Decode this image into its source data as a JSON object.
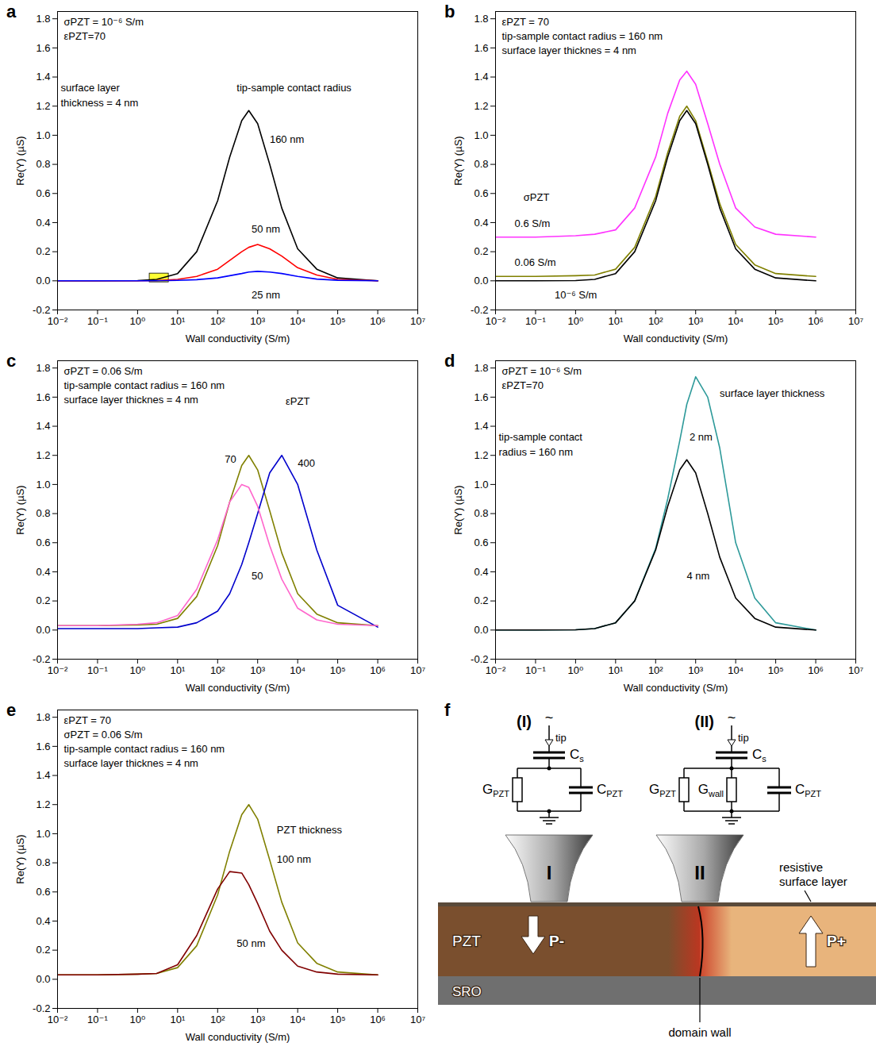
{
  "chart_data": [
    {
      "label": "a",
      "type": "line",
      "log": "x",
      "x_label": "Wall conductivity (S/m)",
      "y_label": "Re(Y) (µS)",
      "xlim": [
        0.01,
        10000000
      ],
      "ylim": [
        -0.2,
        1.85
      ],
      "xticks": [
        {
          "value": 0.01,
          "label": "10⁻²"
        },
        {
          "value": 0.1,
          "label": "10⁻¹"
        },
        {
          "value": 1,
          "label": "10⁰"
        },
        {
          "value": 10,
          "label": "10¹"
        },
        {
          "value": 100,
          "label": "10²"
        },
        {
          "value": 1000,
          "label": "10³"
        },
        {
          "value": 10000,
          "label": "10⁴"
        },
        {
          "value": 100000,
          "label": "10⁵"
        },
        {
          "value": 1000000,
          "label": "10⁶"
        },
        {
          "value": 10000000,
          "label": "10⁷"
        }
      ],
      "yticks": [
        -0.2,
        {
          "value": 0,
          "label": "0.0"
        },
        0.2,
        0.4,
        0.6,
        0.8,
        {
          "value": 1,
          "label": "1.0"
        },
        1.2,
        1.4,
        1.6,
        1.8
      ],
      "notes": [
        "σPZT = 10⁻⁶ S/m",
        "εPZT=70"
      ],
      "annotations": [
        {
          "text": "surface layer",
          "x": 0.012,
          "y": 1.3
        },
        {
          "text": "thickness = 4 nm",
          "x": 0.012,
          "y": 1.2
        },
        {
          "text": "tip-sample contact radius",
          "x": 300,
          "y": 1.3
        }
      ],
      "highlight": {
        "x": [
          2,
          6
        ],
        "y": [
          -0.01,
          0.05
        ],
        "color": "#ffff33"
      },
      "x": [
        0.01,
        0.1,
        1,
        3,
        10,
        30,
        100,
        200,
        400,
        600,
        1000,
        2000,
        4000,
        10000,
        30000,
        100000,
        1000000
      ],
      "series": [
        {
          "name": "160 nm",
          "color": "#000000",
          "label_x": 2000,
          "label_y": 0.95,
          "values": [
            0,
            0,
            0.002,
            0.01,
            0.05,
            0.2,
            0.55,
            0.85,
            1.1,
            1.17,
            1.08,
            0.8,
            0.5,
            0.22,
            0.08,
            0.02,
            0
          ]
        },
        {
          "name": "50 nm",
          "color": "#ff0000",
          "label_x": 700,
          "label_y": 0.33,
          "values": [
            0,
            0,
            0,
            0.002,
            0.01,
            0.03,
            0.08,
            0.14,
            0.2,
            0.23,
            0.25,
            0.22,
            0.17,
            0.09,
            0.04,
            0.01,
            0
          ]
        },
        {
          "name": "25 nm",
          "color": "#0000ff",
          "label_x": 700,
          "label_y": -0.12,
          "values": [
            0,
            0,
            0,
            0,
            0.003,
            0.008,
            0.02,
            0.035,
            0.05,
            0.06,
            0.065,
            0.06,
            0.05,
            0.03,
            0.012,
            0.004,
            0
          ]
        }
      ]
    },
    {
      "label": "b",
      "type": "line",
      "log": "x",
      "x_label": "Wall conductivity (S/m)",
      "y_label": "Re(Y) (µS)",
      "xlim": [
        0.01,
        10000000
      ],
      "ylim": [
        -0.2,
        1.85
      ],
      "xticks": [
        {
          "value": 0.01,
          "label": "10⁻²"
        },
        {
          "value": 0.1,
          "label": "10⁻¹"
        },
        {
          "value": 1,
          "label": "10⁰"
        },
        {
          "value": 10,
          "label": "10¹"
        },
        {
          "value": 100,
          "label": "10²"
        },
        {
          "value": 1000,
          "label": "10³"
        },
        {
          "value": 10000,
          "label": "10⁴"
        },
        {
          "value": 100000,
          "label": "10⁵"
        },
        {
          "value": 1000000,
          "label": "10⁶"
        },
        {
          "value": 10000000,
          "label": "10⁷"
        }
      ],
      "yticks": [
        -0.2,
        {
          "value": 0,
          "label": "0.0"
        },
        0.2,
        0.4,
        0.6,
        0.8,
        {
          "value": 1,
          "label": "1.0"
        },
        1.2,
        1.4,
        1.6,
        1.8
      ],
      "notes": [
        "εPZT = 70",
        "tip-sample contact radius = 160 nm",
        "surface layer thicknes = 4 nm"
      ],
      "annotations": [
        {
          "text": "σPZT",
          "x": 0.05,
          "y": 0.55
        }
      ],
      "x": [
        0.01,
        0.1,
        1,
        3,
        10,
        30,
        100,
        200,
        400,
        600,
        1000,
        2000,
        4000,
        10000,
        30000,
        100000,
        1000000
      ],
      "series": [
        {
          "name": "0.6 S/m",
          "color": "#ff33ff",
          "label_x": 0.03,
          "label_y": 0.37,
          "values": [
            0.3,
            0.3,
            0.31,
            0.32,
            0.35,
            0.5,
            0.85,
            1.15,
            1.38,
            1.44,
            1.35,
            1.08,
            0.8,
            0.5,
            0.37,
            0.32,
            0.3
          ]
        },
        {
          "name": "0.06 S/m",
          "color": "#808000",
          "label_x": 0.03,
          "label_y": 0.1,
          "values": [
            0.03,
            0.03,
            0.035,
            0.04,
            0.08,
            0.23,
            0.58,
            0.88,
            1.13,
            1.2,
            1.1,
            0.82,
            0.53,
            0.25,
            0.11,
            0.05,
            0.03
          ]
        },
        {
          "name": "10⁻⁶ S/m",
          "color": "#000000",
          "label_x": 0.3,
          "label_y": -0.12,
          "values": [
            0,
            0,
            0.002,
            0.01,
            0.05,
            0.2,
            0.55,
            0.85,
            1.1,
            1.17,
            1.08,
            0.8,
            0.5,
            0.22,
            0.08,
            0.02,
            0
          ]
        }
      ]
    },
    {
      "label": "c",
      "type": "line",
      "log": "x",
      "x_label": "Wall conductivity (S/m)",
      "y_label": "Re(Y) (µS)",
      "xlim": [
        0.01,
        10000000
      ],
      "ylim": [
        -0.2,
        1.85
      ],
      "xticks": [
        {
          "value": 0.01,
          "label": "10⁻²"
        },
        {
          "value": 0.1,
          "label": "10⁻¹"
        },
        {
          "value": 1,
          "label": "10⁰"
        },
        {
          "value": 10,
          "label": "10¹"
        },
        {
          "value": 100,
          "label": "10²"
        },
        {
          "value": 1000,
          "label": "10³"
        },
        {
          "value": 10000,
          "label": "10⁴"
        },
        {
          "value": 100000,
          "label": "10⁵"
        },
        {
          "value": 1000000,
          "label": "10⁶"
        },
        {
          "value": 10000000,
          "label": "10⁷"
        }
      ],
      "yticks": [
        -0.2,
        {
          "value": 0,
          "label": "0.0"
        },
        0.2,
        0.4,
        0.6,
        0.8,
        {
          "value": 1,
          "label": "1.0"
        },
        1.2,
        1.4,
        1.6,
        1.8
      ],
      "notes": [
        "σPZT = 0.06 S/m",
        "tip-sample contact radius = 160 nm",
        "surface layer thicknes = 4 nm"
      ],
      "annotations": [
        {
          "text": "εPZT",
          "x": 5000,
          "y": 1.55
        }
      ],
      "x": [
        0.01,
        0.1,
        1,
        3,
        10,
        30,
        100,
        200,
        400,
        600,
        1000,
        2000,
        4000,
        10000,
        30000,
        100000,
        1000000
      ],
      "series": [
        {
          "name": "70",
          "color": "#808000",
          "label_x": 150,
          "label_y": 1.15,
          "values": [
            0.03,
            0.03,
            0.035,
            0.04,
            0.08,
            0.23,
            0.58,
            0.88,
            1.13,
            1.2,
            1.1,
            0.82,
            0.53,
            0.25,
            0.11,
            0.05,
            0.03
          ]
        },
        {
          "name": "400",
          "color": "#0000cc",
          "label_x": 10000,
          "label_y": 1.12,
          "values": [
            0.01,
            0.01,
            0.01,
            0.015,
            0.02,
            0.05,
            0.13,
            0.25,
            0.45,
            0.6,
            0.8,
            1.08,
            1.2,
            1.0,
            0.55,
            0.17,
            0.02
          ]
        },
        {
          "name": "50",
          "color": "#ff66cc",
          "label_x": 700,
          "label_y": 0.35,
          "values": [
            0.03,
            0.03,
            0.04,
            0.05,
            0.1,
            0.28,
            0.62,
            0.88,
            1.0,
            0.98,
            0.85,
            0.58,
            0.35,
            0.15,
            0.07,
            0.04,
            0.03
          ]
        }
      ]
    },
    {
      "label": "d",
      "type": "line",
      "log": "x",
      "x_label": "Wall conductivity (S/m)",
      "y_label": "Re(Y) (µS)",
      "xlim": [
        0.01,
        10000000
      ],
      "ylim": [
        -0.2,
        1.85
      ],
      "xticks": [
        {
          "value": 0.01,
          "label": "10⁻²"
        },
        {
          "value": 0.1,
          "label": "10⁻¹"
        },
        {
          "value": 1,
          "label": "10⁰"
        },
        {
          "value": 10,
          "label": "10¹"
        },
        {
          "value": 100,
          "label": "10²"
        },
        {
          "value": 1000,
          "label": "10³"
        },
        {
          "value": 10000,
          "label": "10⁴"
        },
        {
          "value": 100000,
          "label": "10⁵"
        },
        {
          "value": 1000000,
          "label": "10⁶"
        },
        {
          "value": 10000000,
          "label": "10⁷"
        }
      ],
      "yticks": [
        -0.2,
        {
          "value": 0,
          "label": "0.0"
        },
        0.2,
        0.4,
        0.6,
        0.8,
        {
          "value": 1,
          "label": "1.0"
        },
        1.2,
        1.4,
        1.6,
        1.8
      ],
      "notes": [
        "σPZT = 10⁻⁶ S/m",
        "εPZT=70"
      ],
      "annotations": [
        {
          "text": "tip-sample contact",
          "x": 0.012,
          "y": 1.3
        },
        {
          "text": "radius = 160 nm",
          "x": 0.012,
          "y": 1.2
        },
        {
          "text": "surface layer thickness",
          "x": 4000,
          "y": 1.6
        }
      ],
      "x": [
        0.01,
        0.1,
        1,
        3,
        10,
        30,
        100,
        200,
        400,
        600,
        1000,
        2000,
        4000,
        10000,
        30000,
        100000,
        1000000
      ],
      "series": [
        {
          "name": "2 nm",
          "color": "#2e9a9a",
          "label_x": 700,
          "label_y": 1.3,
          "values": [
            0,
            0,
            0.002,
            0.01,
            0.05,
            0.2,
            0.56,
            0.9,
            1.3,
            1.55,
            1.74,
            1.6,
            1.25,
            0.6,
            0.22,
            0.05,
            0
          ]
        },
        {
          "name": "4 nm",
          "color": "#000000",
          "label_x": 600,
          "label_y": 0.35,
          "values": [
            0,
            0,
            0.002,
            0.01,
            0.05,
            0.2,
            0.55,
            0.85,
            1.1,
            1.17,
            1.08,
            0.8,
            0.5,
            0.22,
            0.08,
            0.02,
            0
          ]
        }
      ]
    },
    {
      "label": "e",
      "type": "line",
      "log": "x",
      "x_label": "Wall conductivity (S/m)",
      "y_label": "Re(Y) (µS)",
      "xlim": [
        0.01,
        10000000
      ],
      "ylim": [
        -0.2,
        1.85
      ],
      "xticks": [
        {
          "value": 0.01,
          "label": "10⁻²"
        },
        {
          "value": 0.1,
          "label": "10⁻¹"
        },
        {
          "value": 1,
          "label": "10⁰"
        },
        {
          "value": 10,
          "label": "10¹"
        },
        {
          "value": 100,
          "label": "10²"
        },
        {
          "value": 1000,
          "label": "10³"
        },
        {
          "value": 10000,
          "label": "10⁴"
        },
        {
          "value": 100000,
          "label": "10⁵"
        },
        {
          "value": 1000000,
          "label": "10⁶"
        },
        {
          "value": 10000000,
          "label": "10⁷"
        }
      ],
      "yticks": [
        -0.2,
        {
          "value": 0,
          "label": "0.0"
        },
        0.2,
        0.4,
        0.6,
        0.8,
        {
          "value": 1,
          "label": "1.0"
        },
        1.2,
        1.4,
        1.6,
        1.8
      ],
      "notes": [
        "εPZT = 70",
        "σPZT = 0.06 S/m",
        "tip-sample contact radius = 160 nm",
        "surface layer thicknes = 4 nm"
      ],
      "annotations": [
        {
          "text": "PZT thickness",
          "x": 3000,
          "y": 1.0
        }
      ],
      "x": [
        0.01,
        0.1,
        1,
        3,
        10,
        30,
        100,
        200,
        400,
        600,
        1000,
        2000,
        4000,
        10000,
        30000,
        100000,
        1000000
      ],
      "series": [
        {
          "name": "100 nm",
          "color": "#808000",
          "label_x": 3000,
          "label_y": 0.8,
          "values": [
            0.03,
            0.03,
            0.035,
            0.04,
            0.08,
            0.23,
            0.58,
            0.88,
            1.13,
            1.2,
            1.1,
            0.82,
            0.53,
            0.25,
            0.11,
            0.05,
            0.03
          ]
        },
        {
          "name": "50 nm",
          "color": "#800000",
          "label_x": 300,
          "label_y": 0.22,
          "values": [
            0.03,
            0.03,
            0.035,
            0.04,
            0.1,
            0.3,
            0.62,
            0.74,
            0.73,
            0.65,
            0.52,
            0.33,
            0.2,
            0.09,
            0.05,
            0.035,
            0.03
          ]
        }
      ]
    }
  ],
  "diagram": {
    "label": "f",
    "circuits": [
      {
        "name": "(I)",
        "source": "~",
        "probe": "tip",
        "series_element": "Cs",
        "parallel_elements": [
          "GPZT",
          "CPZT"
        ]
      },
      {
        "name": "(II)",
        "source": "~",
        "probe": "tip",
        "series_element": "Cs",
        "parallel_elements": [
          "GPZT",
          "Gwall",
          "CPZT"
        ]
      }
    ],
    "tips": [
      "I",
      "II"
    ],
    "sample": {
      "surface_layer": "resistive surface layer",
      "film": "PZT",
      "domains": [
        "P-",
        "P+"
      ],
      "electrode": "SRO",
      "wall": "domain wall"
    }
  }
}
